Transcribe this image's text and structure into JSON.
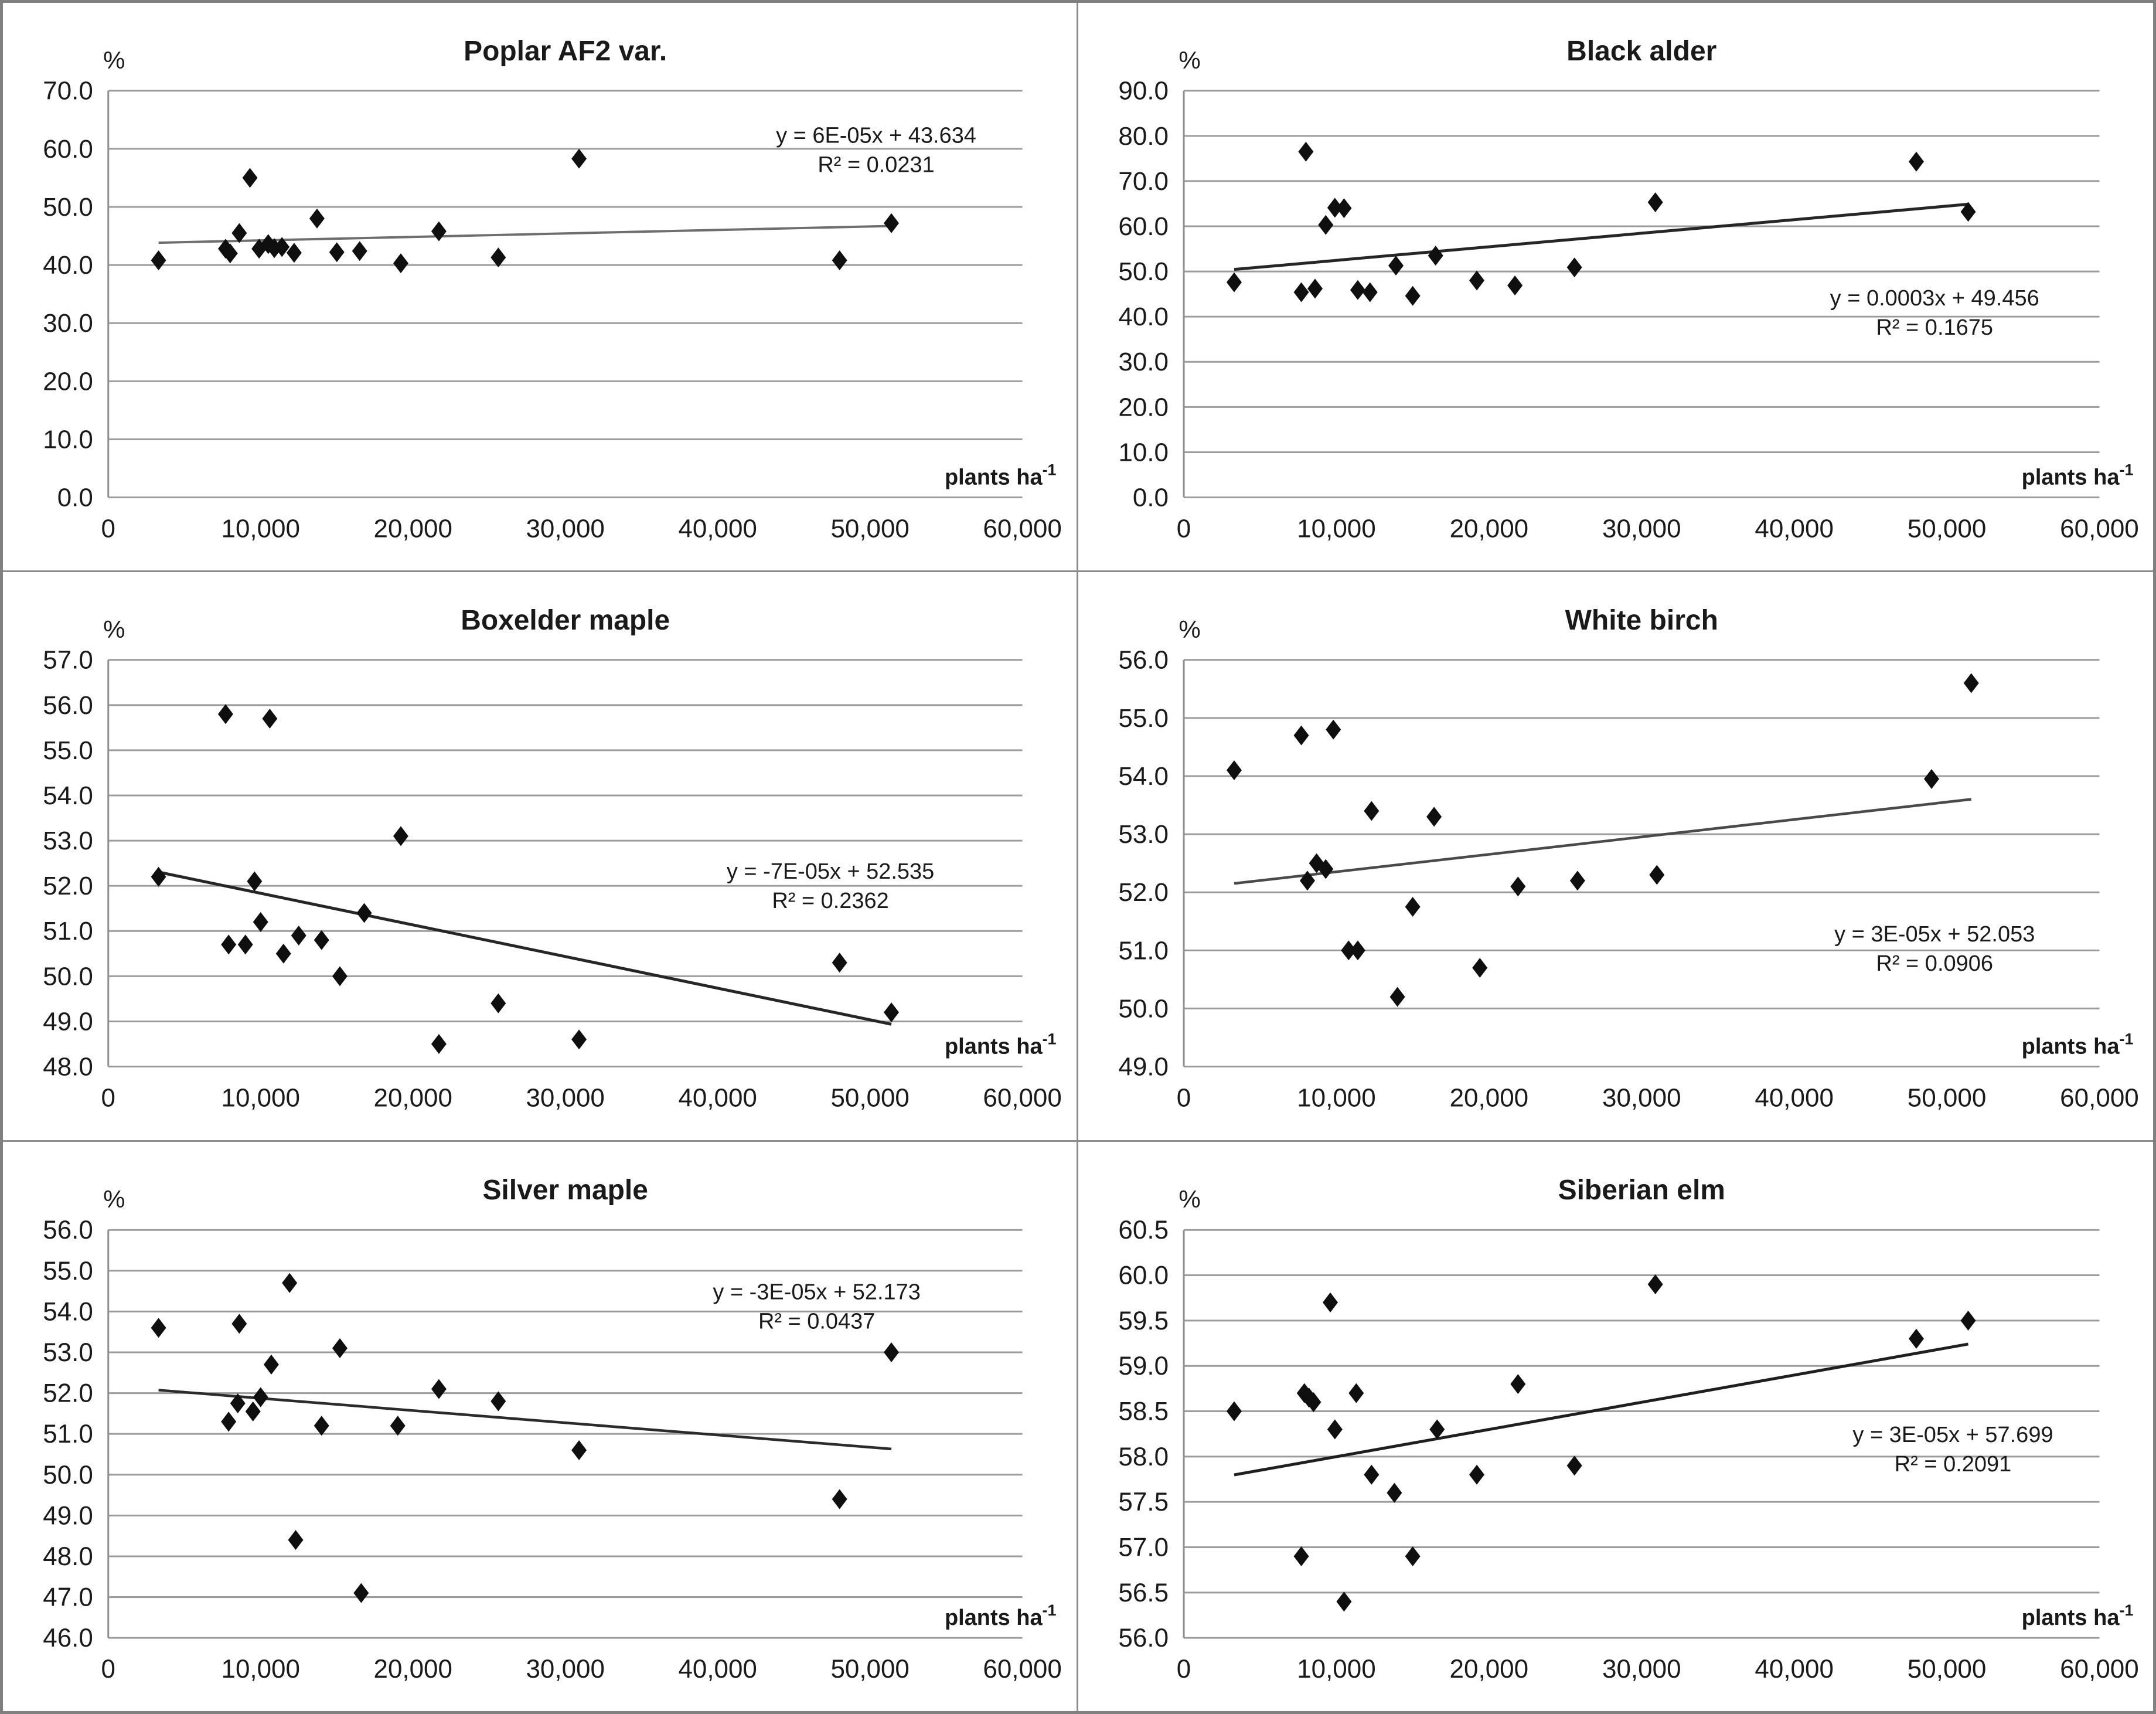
{
  "axes": {
    "y_unit": "%",
    "x_unit_base": "plants ha",
    "x_unit_exp": "-1",
    "xtick_values": [
      0,
      10000,
      20000,
      30000,
      40000,
      50000,
      60000
    ],
    "xtick_labels": [
      "0",
      "10,000",
      "20,000",
      "30,000",
      "40,000",
      "50,000",
      "60,000"
    ],
    "xlim": [
      0,
      60000
    ]
  },
  "style": {
    "grid_color": "#9c9c9c",
    "axis_color": "#8f8f8f",
    "marker_color": "#0f0f0f",
    "text_color": "#1a1a1a",
    "border_color": "#7f7f7f"
  },
  "chart_data": [
    {
      "type": "scatter",
      "title": "Poplar AF2 var.",
      "equation": "y = 6E-05x + 43.634",
      "r2": "R² = 0.0231",
      "trend": {
        "slope": 6e-05,
        "intercept": 43.634,
        "x_start": 3300,
        "x_end": 51400,
        "color": "#6e6e6e",
        "width": 4
      },
      "ylim": [
        0,
        70
      ],
      "ytick_values": [
        70,
        60,
        50,
        40,
        30,
        20,
        10,
        0
      ],
      "ytick_labels": [
        "70.0",
        "60.0",
        "50.0",
        "40.0",
        "30.0",
        "20.0",
        "10.0",
        "0.0"
      ],
      "eq_pos": [
        0.84,
        0.128
      ],
      "points": [
        [
          3300,
          40.8
        ],
        [
          7700,
          42.8
        ],
        [
          8000,
          42.0
        ],
        [
          8600,
          45.5
        ],
        [
          9300,
          55.0
        ],
        [
          9900,
          42.8
        ],
        [
          10500,
          43.6
        ],
        [
          10900,
          42.9
        ],
        [
          11400,
          43.1
        ],
        [
          12200,
          42.1
        ],
        [
          13700,
          48.0
        ],
        [
          15000,
          42.2
        ],
        [
          16500,
          42.4
        ],
        [
          19200,
          40.3
        ],
        [
          21700,
          45.8
        ],
        [
          25600,
          41.3
        ],
        [
          30900,
          58.3
        ],
        [
          48000,
          40.8
        ],
        [
          51400,
          47.2
        ]
      ]
    },
    {
      "type": "scatter",
      "title": "Black alder",
      "equation": "y = 0.0003x + 49.456",
      "r2": "R² = 0.1675",
      "trend": {
        "slope": 0.0003,
        "intercept": 49.456,
        "x_start": 3300,
        "x_end": 51400,
        "color": "#262626",
        "width": 5
      },
      "ylim": [
        0,
        90
      ],
      "ytick_values": [
        90,
        80,
        70,
        60,
        50,
        40,
        30,
        20,
        10,
        0
      ],
      "ytick_labels": [
        "90.0",
        "80.0",
        "70.0",
        "60.0",
        "50.0",
        "40.0",
        "30.0",
        "20.0",
        "10.0",
        "0.0"
      ],
      "eq_pos": [
        0.82,
        0.528
      ],
      "points": [
        [
          3300,
          47.6
        ],
        [
          8000,
          76.5
        ],
        [
          7700,
          45.4
        ],
        [
          8600,
          46.2
        ],
        [
          9300,
          60.3
        ],
        [
          9900,
          64.1
        ],
        [
          10500,
          64.0
        ],
        [
          11400,
          45.9
        ],
        [
          12200,
          45.4
        ],
        [
          13900,
          51.3
        ],
        [
          15000,
          44.6
        ],
        [
          16500,
          53.5
        ],
        [
          19200,
          48.0
        ],
        [
          21700,
          46.9
        ],
        [
          25600,
          50.9
        ],
        [
          30900,
          65.3
        ],
        [
          48000,
          74.3
        ],
        [
          51400,
          63.2
        ]
      ]
    },
    {
      "type": "scatter",
      "title": "Boxelder maple",
      "equation": "y = -7E-05x + 52.535",
      "r2": "R² = 0.2362",
      "trend": {
        "slope": -7e-05,
        "intercept": 52.535,
        "x_start": 3300,
        "x_end": 51400,
        "color": "#262626",
        "width": 5
      },
      "ylim": [
        48,
        57
      ],
      "ytick_values": [
        57,
        56,
        55,
        54,
        53,
        52,
        51,
        50,
        49,
        48
      ],
      "ytick_labels": [
        "57.0",
        "56.0",
        "55.0",
        "54.0",
        "53.0",
        "52.0",
        "51.0",
        "50.0",
        "49.0",
        "48.0"
      ],
      "eq_pos": [
        0.79,
        0.538
      ],
      "points": [
        [
          3300,
          52.2
        ],
        [
          7700,
          55.8
        ],
        [
          7900,
          50.7
        ],
        [
          9000,
          50.7
        ],
        [
          9600,
          52.1
        ],
        [
          10000,
          51.2
        ],
        [
          10600,
          55.7
        ],
        [
          11500,
          50.5
        ],
        [
          12500,
          50.9
        ],
        [
          14000,
          50.8
        ],
        [
          15200,
          50.0
        ],
        [
          16800,
          51.4
        ],
        [
          19200,
          53.1
        ],
        [
          21700,
          48.5
        ],
        [
          25600,
          49.4
        ],
        [
          30900,
          48.6
        ],
        [
          48000,
          50.3
        ],
        [
          51400,
          49.2
        ]
      ]
    },
    {
      "type": "scatter",
      "title": "White birch",
      "equation": "y = 3E-05x + 52.053",
      "r2": "R² = 0.0906",
      "trend": {
        "slope": 3e-05,
        "intercept": 52.053,
        "x_start": 3300,
        "x_end": 51600,
        "color": "#4a4a4a",
        "width": 4.5
      },
      "ylim": [
        49,
        56
      ],
      "ytick_values": [
        56,
        55,
        54,
        53,
        52,
        51,
        50,
        49
      ],
      "ytick_labels": [
        "56.0",
        "55.0",
        "54.0",
        "53.0",
        "52.0",
        "51.0",
        "50.0",
        "49.0"
      ],
      "eq_pos": [
        0.82,
        0.692
      ],
      "points": [
        [
          3300,
          54.1
        ],
        [
          7700,
          54.7
        ],
        [
          8100,
          52.2
        ],
        [
          8700,
          52.5
        ],
        [
          9300,
          52.4
        ],
        [
          9800,
          54.8
        ],
        [
          10800,
          51.0
        ],
        [
          11400,
          51.0
        ],
        [
          12300,
          53.4
        ],
        [
          14000,
          50.2
        ],
        [
          15000,
          51.75
        ],
        [
          16400,
          53.3
        ],
        [
          19400,
          50.7
        ],
        [
          21900,
          52.1
        ],
        [
          25800,
          52.2
        ],
        [
          31000,
          52.3
        ],
        [
          49000,
          53.95
        ],
        [
          51600,
          55.6
        ]
      ]
    },
    {
      "type": "scatter",
      "title": "Silver maple",
      "equation": "y = -3E-05x + 52.173",
      "r2": "R² = 0.0437",
      "trend": {
        "slope": -3e-05,
        "intercept": 52.173,
        "x_start": 3300,
        "x_end": 51400,
        "color": "#2b2b2b",
        "width": 4.5
      },
      "ylim": [
        46,
        56
      ],
      "ytick_values": [
        56,
        55,
        54,
        53,
        52,
        51,
        50,
        49,
        48,
        47,
        46
      ],
      "ytick_labels": [
        "56.0",
        "55.0",
        "54.0",
        "53.0",
        "52.0",
        "51.0",
        "50.0",
        "49.0",
        "48.0",
        "47.0",
        "46.0"
      ],
      "eq_pos": [
        0.775,
        0.17
      ],
      "points": [
        [
          3300,
          53.6
        ],
        [
          7900,
          51.3
        ],
        [
          8500,
          51.75
        ],
        [
          8600,
          53.7
        ],
        [
          9500,
          51.55
        ],
        [
          10000,
          51.9
        ],
        [
          10700,
          52.7
        ],
        [
          11900,
          54.7
        ],
        [
          12300,
          48.4
        ],
        [
          14000,
          51.2
        ],
        [
          15200,
          53.1
        ],
        [
          16600,
          47.1
        ],
        [
          19000,
          51.2
        ],
        [
          21700,
          52.1
        ],
        [
          25600,
          51.8
        ],
        [
          30900,
          50.6
        ],
        [
          48000,
          49.4
        ],
        [
          51400,
          53.0
        ]
      ]
    },
    {
      "type": "scatter",
      "title": "Siberian elm",
      "equation": "y = 3E-05x + 57.699",
      "r2": "R² = 0.2091",
      "trend": {
        "slope": 3e-05,
        "intercept": 57.699,
        "x_start": 3300,
        "x_end": 51400,
        "color": "#1f1f1f",
        "width": 5
      },
      "ylim": [
        56,
        60.5
      ],
      "ytick_values": [
        60.5,
        60,
        59.5,
        59,
        58.5,
        58,
        57.5,
        57,
        56.5,
        56
      ],
      "ytick_labels": [
        "60.5",
        "60.0",
        "59.5",
        "59.0",
        "58.5",
        "58.0",
        "57.5",
        "57.0",
        "56.5",
        "56.0"
      ],
      "eq_pos": [
        0.84,
        0.52
      ],
      "points": [
        [
          3300,
          58.5
        ],
        [
          7700,
          56.9
        ],
        [
          7900,
          58.7
        ],
        [
          8200,
          58.65
        ],
        [
          8500,
          58.6
        ],
        [
          9600,
          59.7
        ],
        [
          9900,
          58.3
        ],
        [
          10500,
          56.4
        ],
        [
          11300,
          58.7
        ],
        [
          12300,
          57.8
        ],
        [
          13800,
          57.6
        ],
        [
          15000,
          56.9
        ],
        [
          16600,
          58.3
        ],
        [
          19200,
          57.8
        ],
        [
          21900,
          58.8
        ],
        [
          25600,
          57.9
        ],
        [
          30900,
          59.9
        ],
        [
          48000,
          59.3
        ],
        [
          51400,
          59.5
        ]
      ]
    }
  ]
}
